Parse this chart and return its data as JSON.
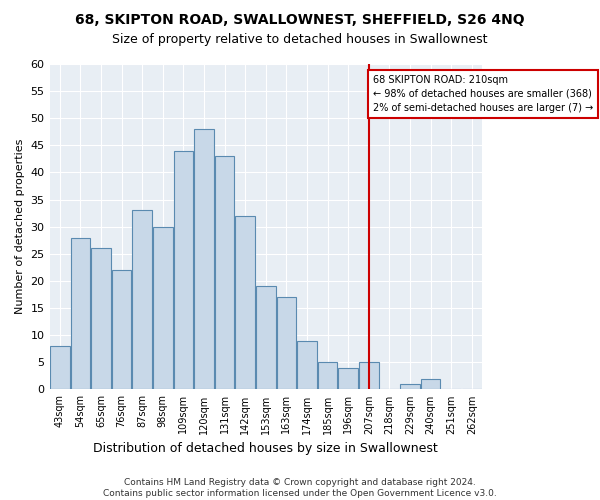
{
  "title": "68, SKIPTON ROAD, SWALLOWNEST, SHEFFIELD, S26 4NQ",
  "subtitle": "Size of property relative to detached houses in Swallownest",
  "xlabel": "Distribution of detached houses by size in Swallownest",
  "ylabel": "Number of detached properties",
  "bar_categories": [
    "43sqm",
    "54sqm",
    "65sqm",
    "76sqm",
    "87sqm",
    "98sqm",
    "109sqm",
    "120sqm",
    "131sqm",
    "142sqm",
    "153sqm",
    "163sqm",
    "174sqm",
    "185sqm",
    "196sqm",
    "207sqm",
    "218sqm",
    "229sqm",
    "240sqm",
    "251sqm",
    "262sqm"
  ],
  "bar_heights": [
    8,
    28,
    26,
    22,
    33,
    30,
    44,
    48,
    43,
    32,
    19,
    17,
    9,
    5,
    4,
    5,
    0,
    1,
    2,
    0,
    0
  ],
  "bar_color": "#c8d8e8",
  "bar_edge_color": "#5a8ab0",
  "grid_color": "#ffffff",
  "bg_color": "#e8eef4",
  "ylim": [
    0,
    60
  ],
  "yticks": [
    0,
    5,
    10,
    15,
    20,
    25,
    30,
    35,
    40,
    45,
    50,
    55,
    60
  ],
  "annotation_text": "68 SKIPTON ROAD: 210sqm\n← 98% of detached houses are smaller (368)\n2% of semi-detached houses are larger (7) →",
  "vline_category": "207sqm",
  "vline_color": "#cc0000",
  "footer": "Contains HM Land Registry data © Crown copyright and database right 2024.\nContains public sector information licensed under the Open Government Licence v3.0.",
  "annotation_box_color": "#cc0000"
}
